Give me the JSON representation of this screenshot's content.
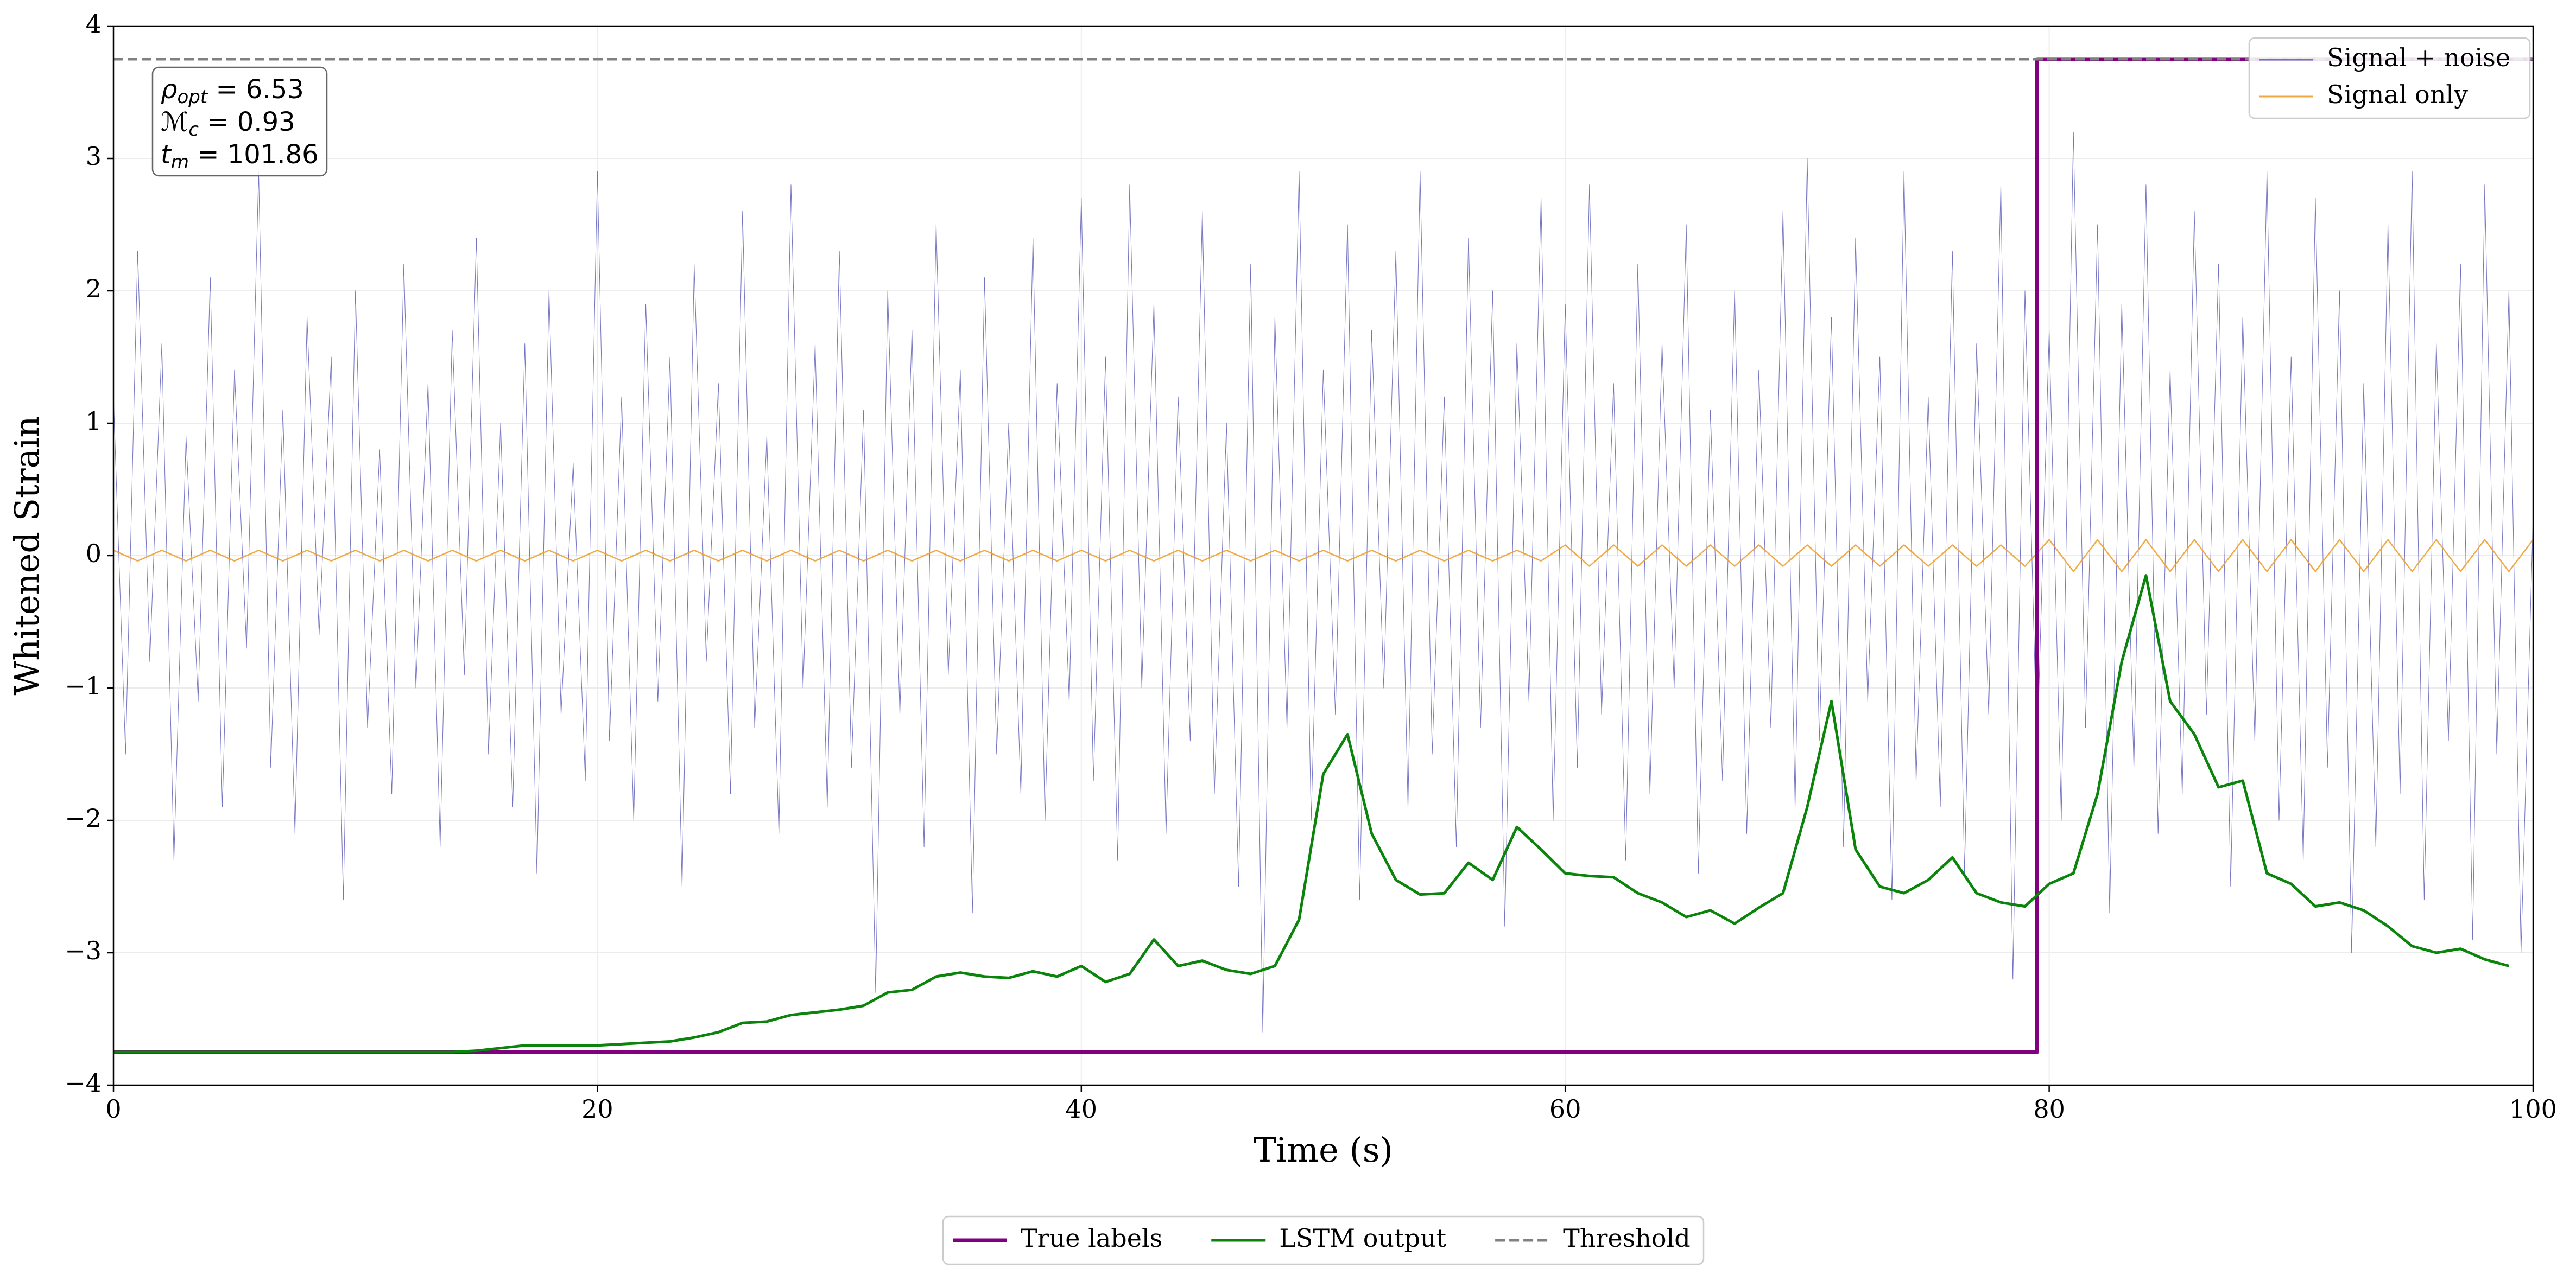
{
  "chart_data": {
    "type": "line",
    "xlabel": "Time (s)",
    "ylabel": "Whitened Strain",
    "xlim": [
      0,
      100
    ],
    "ylim": [
      -4,
      4
    ],
    "xticks": [
      0,
      20,
      40,
      60,
      80,
      100
    ],
    "yticks": [
      {
        "value": -4,
        "label": "−4"
      },
      {
        "value": -3,
        "label": "−3"
      },
      {
        "value": -2,
        "label": "−2"
      },
      {
        "value": -1,
        "label": "−1"
      },
      0,
      1,
      2,
      3,
      4
    ],
    "grid": true,
    "annotation": [
      {
        "symbol": "ρ",
        "sub": "opt",
        "rest": " = 6.53"
      },
      {
        "symbol": "ℳ",
        "sub": "c",
        "rest": " = 0.93"
      },
      {
        "symbol": "t",
        "sub": "m",
        "rest": " = 101.86"
      }
    ],
    "series": [
      {
        "name": "Signal + noise",
        "color": "#5b5bb8",
        "width": 1,
        "opacity": 0.85,
        "legend": "upper-right",
        "x": [
          0,
          0.5,
          1,
          1.5,
          2,
          2.5,
          3,
          3.5,
          4,
          4.5,
          5,
          5.5,
          6,
          6.5,
          7,
          7.5,
          8,
          8.5,
          9,
          9.5,
          10,
          10.5,
          11,
          11.5,
          12,
          12.5,
          13,
          13.5,
          14,
          14.5,
          15,
          15.5,
          16,
          16.5,
          17,
          17.5,
          18,
          18.5,
          19,
          19.5,
          20,
          20.5,
          21,
          21.5,
          22,
          22.5,
          23,
          23.5,
          24,
          24.5,
          25,
          25.5,
          26,
          26.5,
          27,
          27.5,
          28,
          28.5,
          29,
          29.5,
          30,
          30.5,
          31,
          31.5,
          32,
          32.5,
          33,
          33.5,
          34,
          34.5,
          35,
          35.5,
          36,
          36.5,
          37,
          37.5,
          38,
          38.5,
          39,
          39.5,
          40,
          40.5,
          41,
          41.5,
          42,
          42.5,
          43,
          43.5,
          44,
          44.5,
          45,
          45.5,
          46,
          46.5,
          47,
          47.5,
          48,
          48.5,
          49,
          49.5,
          50,
          50.5,
          51,
          51.5,
          52,
          52.5,
          53,
          53.5,
          54,
          54.5,
          55,
          55.5,
          56,
          56.5,
          57,
          57.5,
          58,
          58.5,
          59,
          59.5,
          60,
          60.5,
          61,
          61.5,
          62,
          62.5,
          63,
          63.5,
          64,
          64.5,
          65,
          65.5,
          66,
          66.5,
          67,
          67.5,
          68,
          68.5,
          69,
          69.5,
          70,
          70.5,
          71,
          71.5,
          72,
          72.5,
          73,
          73.5,
          74,
          74.5,
          75,
          75.5,
          76,
          76.5,
          77,
          77.5,
          78,
          78.5,
          79,
          79.5,
          80,
          80.5,
          81,
          81.5,
          82,
          82.5,
          83,
          83.5,
          84,
          84.5,
          85,
          85.5,
          86,
          86.5,
          87,
          87.5,
          88,
          88.5,
          89,
          89.5,
          90,
          90.5,
          91,
          91.5,
          92,
          92.5,
          93,
          93.5,
          94,
          94.5,
          95,
          95.5,
          96,
          96.5,
          97,
          97.5,
          98,
          98.5,
          99,
          99.5,
          100
        ],
        "values": [
          1.2,
          -1.5,
          2.3,
          -0.8,
          1.6,
          -2.3,
          0.9,
          -1.1,
          2.1,
          -1.9,
          1.4,
          -0.7,
          2.9,
          -1.6,
          1.1,
          -2.1,
          1.8,
          -0.6,
          1.5,
          -2.6,
          2.0,
          -1.3,
          0.8,
          -1.8,
          2.2,
          -1.0,
          1.3,
          -2.2,
          1.7,
          -0.9,
          2.4,
          -1.5,
          1.0,
          -1.9,
          1.6,
          -2.4,
          2.0,
          -1.2,
          0.7,
          -1.7,
          2.9,
          -1.4,
          1.2,
          -2.0,
          1.9,
          -1.1,
          1.5,
          -2.5,
          2.2,
          -0.8,
          1.3,
          -1.8,
          2.6,
          -1.3,
          0.9,
          -2.1,
          2.8,
          -1.0,
          1.6,
          -1.9,
          2.3,
          -1.6,
          1.1,
          -3.3,
          2.0,
          -1.2,
          1.7,
          -2.2,
          2.5,
          -0.9,
          1.4,
          -2.7,
          2.1,
          -1.5,
          1.0,
          -1.8,
          2.4,
          -2.0,
          1.3,
          -1.1,
          2.7,
          -1.7,
          1.5,
          -2.3,
          2.8,
          -1.0,
          1.9,
          -2.1,
          1.2,
          -1.4,
          2.6,
          -1.8,
          1.0,
          -2.5,
          2.2,
          -3.6,
          1.8,
          -1.3,
          2.9,
          -2.0,
          1.4,
          -1.2,
          2.5,
          -2.6,
          1.7,
          -1.0,
          2.3,
          -1.9,
          2.9,
          -1.5,
          1.2,
          -2.2,
          2.4,
          -1.3,
          2.0,
          -2.8,
          1.6,
          -1.1,
          2.7,
          -2.0,
          1.9,
          -1.6,
          2.8,
          -1.2,
          1.3,
          -2.3,
          2.2,
          -1.8,
          1.6,
          -1.0,
          2.5,
          -2.4,
          1.1,
          -1.7,
          2.0,
          -2.1,
          1.4,
          -1.3,
          2.6,
          -1.9,
          3.0,
          -1.4,
          1.8,
          -2.2,
          2.4,
          -1.1,
          1.5,
          -2.6,
          2.9,
          -1.7,
          1.2,
          -1.9,
          2.3,
          -2.4,
          1.6,
          -1.2,
          2.8,
          -3.2,
          2.0,
          -1.5,
          1.7,
          -2.0,
          3.2,
          -1.3,
          2.5,
          -2.7,
          1.9,
          -1.6,
          2.8,
          -2.1,
          1.4,
          -1.8,
          2.6,
          -1.2,
          2.2,
          -2.5,
          1.8,
          -1.4,
          2.9,
          -2.0,
          1.5,
          -2.3,
          2.7,
          -1.6,
          2.0,
          -3.0,
          1.3,
          -2.2,
          2.5,
          -1.8,
          2.9,
          -2.6,
          1.6,
          -1.4,
          2.2,
          -2.9,
          2.8,
          -1.5,
          2.0,
          -3.0,
          0.3
        ]
      },
      {
        "name": "Signal only",
        "color": "#f0a030",
        "width": 2.5,
        "opacity": 0.9,
        "legend": "upper-right",
        "x": [
          0,
          1,
          2,
          3,
          4,
          5,
          6,
          7,
          8,
          9,
          10,
          11,
          12,
          13,
          14,
          15,
          16,
          17,
          18,
          19,
          20,
          21,
          22,
          23,
          24,
          25,
          26,
          27,
          28,
          29,
          30,
          31,
          32,
          33,
          34,
          35,
          36,
          37,
          38,
          39,
          40,
          41,
          42,
          43,
          44,
          45,
          46,
          47,
          48,
          49,
          50,
          51,
          52,
          53,
          54,
          55,
          56,
          57,
          58,
          59,
          60,
          61,
          62,
          63,
          64,
          65,
          66,
          67,
          68,
          69,
          70,
          71,
          72,
          73,
          74,
          75,
          76,
          77,
          78,
          79,
          80,
          81,
          82,
          83,
          84,
          85,
          86,
          87,
          88,
          89,
          90,
          91,
          92,
          93,
          94,
          95,
          96,
          97,
          98,
          99,
          100
        ],
        "values": [
          0.04,
          -0.04,
          0.04,
          -0.04,
          0.04,
          -0.04,
          0.04,
          -0.04,
          0.04,
          -0.04,
          0.04,
          -0.04,
          0.04,
          -0.04,
          0.04,
          -0.04,
          0.04,
          -0.04,
          0.04,
          -0.04,
          0.04,
          -0.04,
          0.04,
          -0.04,
          0.04,
          -0.04,
          0.04,
          -0.04,
          0.04,
          -0.04,
          0.04,
          -0.04,
          0.04,
          -0.04,
          0.04,
          -0.04,
          0.04,
          -0.04,
          0.04,
          -0.04,
          0.04,
          -0.04,
          0.04,
          -0.04,
          0.04,
          -0.04,
          0.04,
          -0.04,
          0.04,
          -0.04,
          0.04,
          -0.04,
          0.04,
          -0.04,
          0.04,
          -0.04,
          0.04,
          -0.04,
          0.04,
          -0.04,
          0.08,
          -0.08,
          0.08,
          -0.08,
          0.08,
          -0.08,
          0.08,
          -0.08,
          0.08,
          -0.08,
          0.08,
          -0.08,
          0.08,
          -0.08,
          0.08,
          -0.08,
          0.08,
          -0.08,
          0.08,
          -0.08,
          0.12,
          -0.12,
          0.12,
          -0.12,
          0.12,
          -0.12,
          0.12,
          -0.12,
          0.12,
          -0.12,
          0.12,
          -0.12,
          0.12,
          -0.12,
          0.12,
          -0.12,
          0.12,
          -0.12,
          0.12,
          -0.12,
          0.12
        ]
      },
      {
        "name": "True labels",
        "color": "#800080",
        "width": 7,
        "opacity": 1,
        "legend": "lower-center",
        "x": [
          0,
          79.5,
          79.5,
          100
        ],
        "values": [
          -3.75,
          -3.75,
          3.75,
          3.75
        ]
      },
      {
        "name": "LSTM output",
        "color": "#0a840a",
        "width": 5,
        "opacity": 1,
        "legend": "lower-center",
        "x": [
          0,
          1,
          2,
          3,
          4,
          5,
          6,
          7,
          8,
          9,
          10,
          11,
          12,
          13,
          14,
          15,
          16,
          17,
          18,
          19,
          20,
          21,
          22,
          23,
          24,
          25,
          26,
          27,
          28,
          29,
          30,
          31,
          32,
          33,
          34,
          35,
          36,
          37,
          38,
          39,
          40,
          41,
          42,
          43,
          44,
          45,
          46,
          47,
          48,
          49,
          50,
          51,
          52,
          53,
          54,
          55,
          56,
          57,
          58,
          59,
          60,
          61,
          62,
          63,
          64,
          65,
          66,
          67,
          68,
          69,
          70,
          71,
          72,
          73,
          74,
          75,
          76,
          77,
          78,
          79,
          80,
          81,
          82,
          83,
          84,
          85,
          86,
          87,
          88,
          89,
          90,
          91,
          92,
          93,
          94,
          95,
          96,
          97,
          98,
          99
        ],
        "values": [
          -3.75,
          -3.75,
          -3.75,
          -3.75,
          -3.75,
          -3.75,
          -3.75,
          -3.75,
          -3.75,
          -3.75,
          -3.75,
          -3.75,
          -3.75,
          -3.75,
          -3.75,
          -3.74,
          -3.72,
          -3.7,
          -3.7,
          -3.7,
          -3.7,
          -3.69,
          -3.68,
          -3.67,
          -3.64,
          -3.6,
          -3.53,
          -3.52,
          -3.47,
          -3.45,
          -3.43,
          -3.4,
          -3.3,
          -3.28,
          -3.18,
          -3.15,
          -3.18,
          -3.19,
          -3.14,
          -3.18,
          -3.1,
          -3.22,
          -3.16,
          -2.9,
          -3.1,
          -3.06,
          -3.13,
          -3.16,
          -3.1,
          -2.75,
          -1.65,
          -1.35,
          -2.1,
          -2.45,
          -2.56,
          -2.55,
          -2.32,
          -2.45,
          -2.05,
          -2.22,
          -2.4,
          -2.42,
          -2.43,
          -2.55,
          -2.62,
          -2.73,
          -2.68,
          -2.78,
          -2.66,
          -2.55,
          -1.9,
          -1.1,
          -2.22,
          -2.5,
          -2.55,
          -2.45,
          -2.28,
          -2.55,
          -2.62,
          -2.65,
          -2.48,
          -2.4,
          -1.8,
          -0.8,
          -0.15,
          -1.1,
          -1.35,
          -1.75,
          -1.7,
          -2.4,
          -2.48,
          -2.65,
          -2.62,
          -2.68,
          -2.8,
          -2.95,
          -3.0,
          -2.97,
          -3.05,
          -3.1
        ]
      },
      {
        "name": "Threshold",
        "color": "#808080",
        "width": 5,
        "opacity": 1,
        "dashed": true,
        "legend": "lower-center",
        "x": [
          0,
          100
        ],
        "values": [
          3.75,
          3.75
        ]
      }
    ]
  }
}
